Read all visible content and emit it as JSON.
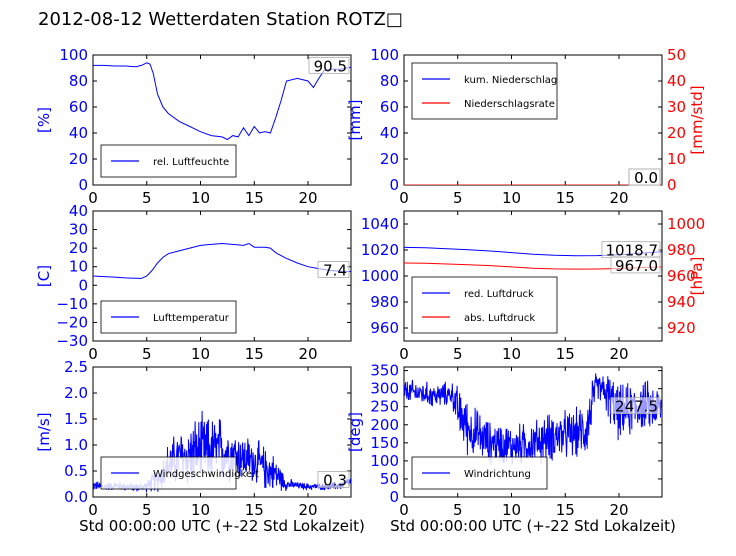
{
  "figure_title": "2012-08-12 Wetterdaten Station ROTZ□",
  "xlabel": "Std 00:00:00 UTC (+-22 Std Lokalzeit)",
  "colors": {
    "left_axis": "#0000ff",
    "right_axis": "#ff0000",
    "series_blue": "#0000ff",
    "series_red": "#ff0000"
  },
  "chart_data": [
    {
      "type": "line",
      "panel": "top-left",
      "ylabel": "[%]",
      "ylim": [
        0,
        100
      ],
      "yticks": [
        "0",
        "20",
        "40",
        "60",
        "80",
        "100"
      ],
      "xlim": [
        0,
        24
      ],
      "xticks": [
        "0",
        "5",
        "10",
        "15",
        "20"
      ],
      "series": [
        {
          "name": "rel. Luftfeuchte",
          "color": "#0000ff",
          "x": [
            0,
            1,
            2,
            3,
            4,
            4.5,
            5,
            5.3,
            5.6,
            6,
            6.5,
            7,
            8,
            9,
            10,
            11,
            12,
            12.5,
            13,
            13.5,
            14,
            14.5,
            15,
            15.5,
            16,
            16.5,
            17,
            17.5,
            18,
            19,
            20,
            20.5,
            21,
            21.5,
            22,
            23,
            24
          ],
          "y": [
            92,
            92,
            91.5,
            91.5,
            91,
            92,
            94,
            93,
            86,
            70,
            60,
            55,
            49,
            45,
            41,
            38,
            37,
            35,
            38,
            37,
            44,
            38,
            45,
            40,
            41,
            40,
            52,
            65,
            80,
            82,
            80,
            75,
            82,
            88,
            89,
            89,
            90.5
          ]
        }
      ],
      "annotation": "90.5",
      "legend": "bottom-left"
    },
    {
      "type": "line",
      "panel": "top-right",
      "ylabel": "[mm]",
      "ylabel_right": "[mm/std]",
      "ylim": [
        0,
        100
      ],
      "yticks": [
        "0",
        "20",
        "40",
        "60",
        "80",
        "100"
      ],
      "ylim_right": [
        0,
        50
      ],
      "yticks_right": [
        "0",
        "10",
        "20",
        "30",
        "40",
        "50"
      ],
      "xlim": [
        0,
        24
      ],
      "xticks": [
        "0",
        "5",
        "10",
        "15",
        "20"
      ],
      "series": [
        {
          "name": "kum. Niederschlag",
          "color": "#0000ff",
          "x": [
            0,
            24
          ],
          "y": [
            0,
            0
          ]
        },
        {
          "name": "Niederschlagsrate",
          "color": "#ff0000",
          "x": [
            0,
            24
          ],
          "y": [
            0,
            0
          ]
        }
      ],
      "annotations": [
        "0.0",
        "0.0"
      ],
      "legend": "top-left"
    },
    {
      "type": "line",
      "panel": "middle-left",
      "ylabel": "[C]",
      "ylim": [
        -30,
        40
      ],
      "yticks": [
        "−30",
        "−20",
        "−10",
        "0",
        "10",
        "20",
        "30",
        "40"
      ],
      "xlim": [
        0,
        24
      ],
      "xticks": [
        "0",
        "5",
        "10",
        "15",
        "20"
      ],
      "series": [
        {
          "name": "Lufttemperatur",
          "color": "#0000ff",
          "x": [
            0,
            1,
            2,
            3,
            4,
            4.5,
            5,
            5.5,
            6,
            6.5,
            7,
            8,
            9,
            10,
            11,
            12,
            13,
            14,
            14.5,
            15,
            16,
            16.5,
            17,
            18,
            19,
            20,
            21,
            22,
            23,
            24
          ],
          "y": [
            5,
            4.7,
            4.4,
            4,
            3.8,
            3.7,
            5,
            8,
            12,
            15,
            17,
            18.5,
            20,
            21.5,
            22,
            22.5,
            22,
            21.5,
            22.5,
            20.5,
            20.5,
            20,
            17.5,
            14.5,
            12,
            10,
            9,
            8,
            7.6,
            7.4
          ]
        }
      ],
      "annotation": "7.4",
      "legend": "bottom-left"
    },
    {
      "type": "line",
      "panel": "middle-right",
      "ylabel_right": "[hPa]",
      "ylim": [
        950,
        1050
      ],
      "yticks": [
        "960",
        "980",
        "1000",
        "1020",
        "1040"
      ],
      "ylim_right": [
        910,
        1010
      ],
      "yticks_right": [
        "920",
        "940",
        "960",
        "980",
        "1000"
      ],
      "xlim": [
        0,
        24
      ],
      "xticks": [
        "0",
        "5",
        "10",
        "15",
        "20"
      ],
      "series": [
        {
          "name": "red. Luftdruck",
          "color": "#0000ff",
          "axis": "left",
          "x": [
            0,
            2,
            4,
            6,
            8,
            10,
            12,
            14,
            16,
            18,
            20,
            22,
            24
          ],
          "y": [
            1022,
            1021.8,
            1021,
            1020.2,
            1019.2,
            1018,
            1016.8,
            1016,
            1015.6,
            1015.7,
            1016.2,
            1017.6,
            1018.7
          ]
        },
        {
          "name": "abs. Luftdruck",
          "color": "#ff0000",
          "axis": "right",
          "x": [
            0,
            2,
            4,
            6,
            8,
            10,
            12,
            14,
            16,
            18,
            20,
            22,
            24
          ],
          "y": [
            970,
            969.8,
            969.2,
            968.6,
            968,
            967,
            966,
            965.5,
            965.3,
            965.4,
            965.8,
            966.5,
            967.0
          ]
        }
      ],
      "annotations": [
        "1018.7",
        "967.0"
      ],
      "legend": "bottom-left"
    },
    {
      "type": "line",
      "panel": "bottom-left",
      "ylabel": "[m/s]",
      "ylim": [
        0,
        2.5
      ],
      "yticks": [
        "0.0",
        "0.5",
        "1.0",
        "1.5",
        "2.0",
        "2.5"
      ],
      "xlim": [
        0,
        24
      ],
      "xticks": [
        "0",
        "5",
        "10",
        "15",
        "20"
      ],
      "series": [
        {
          "name": "Windgeschwindigkeit",
          "color": "#0000ff",
          "style": "noisy",
          "x": [
            0,
            1,
            2,
            3,
            4,
            5,
            6,
            7,
            8,
            9,
            10,
            11,
            12,
            13,
            14,
            15,
            16,
            17,
            18,
            19,
            20,
            21,
            22,
            23,
            24
          ],
          "y": [
            0.22,
            0.2,
            0.22,
            0.2,
            0.18,
            0.2,
            0.35,
            0.6,
            0.75,
            0.8,
            0.9,
            0.9,
            0.9,
            0.85,
            0.75,
            0.7,
            0.55,
            0.45,
            0.25,
            0.22,
            0.2,
            0.2,
            0.2,
            0.22,
            0.3
          ],
          "spread": [
            0.12,
            0.1,
            0.1,
            0.1,
            0.1,
            0.12,
            0.3,
            0.55,
            0.65,
            0.75,
            0.8,
            0.75,
            0.8,
            0.6,
            0.55,
            0.5,
            0.5,
            0.4,
            0.15,
            0.08,
            0.08,
            0.08,
            0.08,
            0.1,
            0.12
          ]
        }
      ],
      "annotation": "0.3",
      "legend": "bottom-left"
    },
    {
      "type": "line",
      "panel": "bottom-right",
      "ylabel": "[deg]",
      "ylim": [
        0,
        360
      ],
      "yticks": [
        "0",
        "50",
        "100",
        "150",
        "200",
        "250",
        "300",
        "350"
      ],
      "xlim": [
        0,
        24
      ],
      "xticks": [
        "0",
        "5",
        "10",
        "15",
        "20"
      ],
      "series": [
        {
          "name": "Windrichtung",
          "color": "#0000ff",
          "style": "noisy",
          "x": [
            0,
            1,
            2,
            3,
            4,
            4.5,
            5,
            6,
            7,
            8,
            9,
            10,
            11,
            12,
            13,
            14,
            15,
            16,
            17,
            17.5,
            18,
            19,
            20,
            21,
            22,
            23,
            24
          ],
          "y": [
            290,
            290,
            285,
            280,
            285,
            285,
            240,
            190,
            170,
            150,
            150,
            140,
            145,
            150,
            160,
            170,
            170,
            175,
            190,
            260,
            310,
            280,
            230,
            240,
            255,
            250,
            247.5
          ],
          "spread": [
            40,
            40,
            40,
            40,
            40,
            40,
            80,
            90,
            80,
            70,
            70,
            70,
            70,
            70,
            80,
            80,
            80,
            80,
            90,
            100,
            40,
            80,
            90,
            90,
            80,
            80,
            60
          ]
        }
      ],
      "annotation": "247.5",
      "legend": "bottom-left"
    }
  ]
}
